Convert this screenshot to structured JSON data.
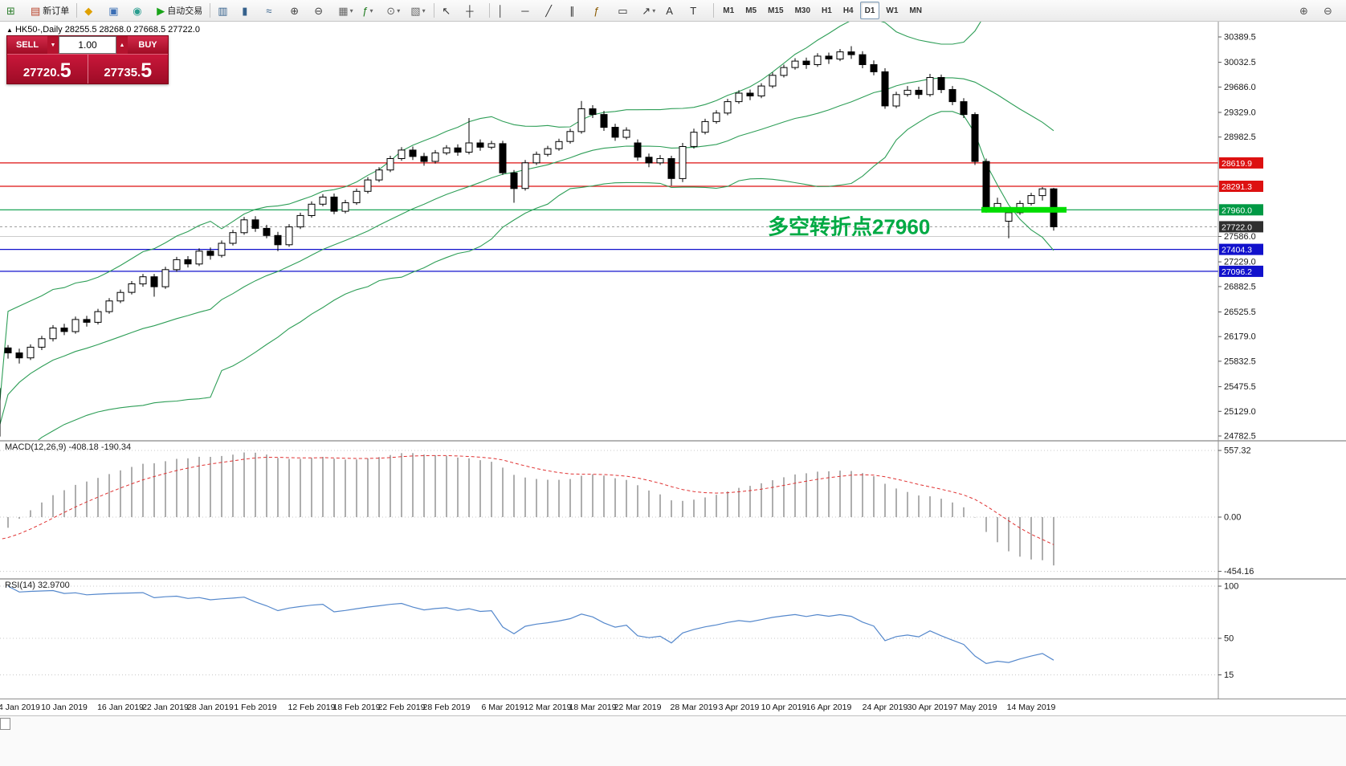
{
  "toolbar": {
    "groups": [
      {
        "items": [
          {
            "name": "new-chart-button",
            "icon": "chart-plus-icon",
            "glyph": "⊞",
            "color": "#2a7d2a"
          },
          {
            "name": "new-order-button",
            "icon": "order-form-icon",
            "glyph": "▤",
            "color": "#b8422a",
            "label": "新订单"
          }
        ]
      },
      {
        "items": [
          {
            "name": "mql5-market-button",
            "icon": "diamond-icon",
            "glyph": "◆",
            "color": "#dfa000"
          },
          {
            "name": "community-button",
            "icon": "person-icon",
            "glyph": "▣",
            "color": "#3b6fb5"
          },
          {
            "name": "news-button",
            "icon": "globe-icon",
            "glyph": "◉",
            "color": "#2a9d8f"
          },
          {
            "name": "autotrading-button",
            "icon": "play-icon",
            "glyph": "▶",
            "color": "#18a318",
            "label": "自动交易"
          }
        ]
      },
      {
        "items": [
          {
            "name": "bar-chart-button",
            "icon": "bars-chart-icon",
            "glyph": "▥",
            "color": "#35618c"
          },
          {
            "name": "candlestick-chart-button",
            "icon": "candlestick-icon",
            "glyph": "▮",
            "color": "#35618c"
          },
          {
            "name": "line-chart-button",
            "icon": "line-chart-icon",
            "glyph": "≈",
            "color": "#35618c"
          },
          {
            "name": "zoom-in-button",
            "icon": "zoom-in-icon",
            "glyph": "⊕",
            "color": "#444444"
          },
          {
            "name": "zoom-out-button",
            "icon": "zoom-out-icon",
            "glyph": "⊖",
            "color": "#444444"
          },
          {
            "name": "tile-windows-button",
            "icon": "tile-windows-icon",
            "glyph": "▦",
            "color": "#666666",
            "caret": true
          },
          {
            "name": "indicators-button",
            "icon": "indicators-icon",
            "glyph": "ƒ",
            "color": "#1d7a1d",
            "caret": true
          },
          {
            "name": "periods-button",
            "icon": "clock-icon",
            "glyph": "⊙",
            "color": "#666666",
            "caret": true
          },
          {
            "name": "templates-button",
            "icon": "template-icon",
            "glyph": "▧",
            "color": "#666666",
            "caret": true
          }
        ]
      },
      {
        "items": [
          {
            "name": "cursor-button",
            "icon": "cursor-icon",
            "glyph": "↖",
            "color": "#333333"
          },
          {
            "name": "crosshair-button",
            "icon": "crosshair-icon",
            "glyph": "┼",
            "color": "#333333"
          }
        ]
      },
      {
        "items": [
          {
            "name": "vertical-line-button",
            "icon": "vertical-line-icon",
            "glyph": "│",
            "color": "#333333"
          },
          {
            "name": "horizontal-line-button",
            "icon": "horizontal-line-icon",
            "glyph": "─",
            "color": "#333333"
          },
          {
            "name": "trendline-button",
            "icon": "trendline-icon",
            "glyph": "╱",
            "color": "#333333"
          },
          {
            "name": "channel-button",
            "icon": "channel-icon",
            "glyph": "∥",
            "color": "#333333"
          },
          {
            "name": "fibonacci-button",
            "icon": "fibonacci-icon",
            "glyph": "ƒ",
            "color": "#8a5a00"
          },
          {
            "name": "shapes-button",
            "icon": "shapes-icon",
            "glyph": "▭",
            "color": "#333333"
          },
          {
            "name": "arrows-button",
            "icon": "arrow-icon",
            "glyph": "↗",
            "color": "#333333",
            "caret": true
          },
          {
            "name": "text-button",
            "icon": "text-icon",
            "glyph": "A",
            "color": "#333333"
          },
          {
            "name": "text-label-button",
            "icon": "text-label-icon",
            "glyph": "T",
            "color": "#333333"
          }
        ]
      }
    ],
    "timeframes": [
      "M1",
      "M5",
      "M15",
      "M30",
      "H1",
      "H4",
      "D1",
      "W1",
      "MN"
    ],
    "active_timeframe": "D1",
    "right_items": [
      {
        "name": "window-zoom-in-button",
        "icon": "magnifier-plus-icon",
        "glyph": "⊕",
        "color": "#555555"
      },
      {
        "name": "window-zoom-out-button",
        "icon": "magnifier-minus-icon",
        "glyph": "⊖",
        "color": "#555555"
      }
    ]
  },
  "chart": {
    "symbol_info": "HK50-,Daily  28255.5 28268.0 27668.5 27722.0",
    "collapse_arrow": "▲"
  },
  "trade": {
    "sell_label": "SELL",
    "buy_label": "BUY",
    "volume": "1.00",
    "spin_down": "▼",
    "spin_up": "▲",
    "sell_price_main": "27720.",
    "sell_price_frac": "5",
    "buy_price_main": "27735.",
    "buy_price_frac": "5"
  },
  "chart_data": {
    "type": "candlestick",
    "symbol": "HK50-",
    "period": "Daily",
    "last_ohlc": {
      "open": 28255.5,
      "high": 28268.0,
      "low": 27668.5,
      "close": 27722.0
    },
    "price_range": {
      "top": 30389.5,
      "bottom": 24782.5
    },
    "y_axis_ticks": [
      30389.5,
      30032.5,
      29686.0,
      29329.0,
      28982.5,
      27586.0,
      27229.0,
      26882.5,
      26525.5,
      26179.0,
      25832.5,
      25475.5,
      25129.0,
      24782.5
    ],
    "levels": [
      {
        "price": 28619.9,
        "color": "#dd1111",
        "width": 1.2,
        "badge": true
      },
      {
        "price": 28291.3,
        "color": "#dd1111",
        "width": 1.2,
        "badge": true
      },
      {
        "price": 27960.0,
        "color": "#009944",
        "width": 1.2,
        "badge": true
      },
      {
        "price": 27586.0,
        "color": "#cccccc",
        "width": 1,
        "badge": false
      },
      {
        "price": 27404.3,
        "color": "#1111cc",
        "width": 1.2,
        "badge": true
      },
      {
        "price": 27096.2,
        "color": "#1111cc",
        "width": 1.2,
        "badge": true
      }
    ],
    "current_price": {
      "price": 27722.0,
      "badge_color": "#2f2f2f"
    },
    "bollinger": {
      "period": 20,
      "deviation": 2,
      "color": "#2e9e57"
    },
    "trend_highlight": {
      "price": 27960.0,
      "from_candle": 88,
      "to_candle": 94,
      "color": "#00dd00"
    },
    "annotation": {
      "text": "多空转折点27960",
      "color": "#00aa44"
    },
    "macd": {
      "label": "MACD(12,26,9)",
      "value_main": "-408.18",
      "value_signal": "-190.34",
      "axis": [
        "557.32",
        "0.00",
        "-454.16"
      ],
      "axis_values": [
        557.32,
        0,
        -454.16
      ]
    },
    "rsi": {
      "label": "RSI(14)",
      "value": "32.9700",
      "axis": [
        "100",
        "50",
        "15"
      ],
      "axis_values": [
        100,
        50,
        15
      ]
    },
    "date_labels": [
      {
        "label": "4 Jan 2019",
        "i": 1
      },
      {
        "label": "10 Jan 2019",
        "i": 6
      },
      {
        "label": "16 Jan 2019",
        "i": 11
      },
      {
        "label": "22 Jan 2019",
        "i": 15
      },
      {
        "label": "28 Jan 2019",
        "i": 19
      },
      {
        "label": "1 Feb 2019",
        "i": 23
      },
      {
        "label": "12 Feb 2019",
        "i": 28
      },
      {
        "label": "18 Feb 2019",
        "i": 32
      },
      {
        "label": "22 Feb 2019",
        "i": 36
      },
      {
        "label": "28 Feb 2019",
        "i": 40
      },
      {
        "label": "6 Mar 2019",
        "i": 45
      },
      {
        "label": "12 Mar 2019",
        "i": 49
      },
      {
        "label": "18 Mar 2019",
        "i": 53
      },
      {
        "label": "22 Mar 2019",
        "i": 57
      },
      {
        "label": "28 Mar 2019",
        "i": 62
      },
      {
        "label": "3 Apr 2019",
        "i": 66
      },
      {
        "label": "10 Apr 2019",
        "i": 70
      },
      {
        "label": "16 Apr 2019",
        "i": 74
      },
      {
        "label": "24 Apr 2019",
        "i": 79
      },
      {
        "label": "30 Apr 2019",
        "i": 83
      },
      {
        "label": "7 May 2019",
        "i": 87
      },
      {
        "label": "14 May 2019",
        "i": 92
      }
    ],
    "candles": [
      [
        25450,
        25500,
        24700,
        24780
      ],
      [
        26020,
        26060,
        25870,
        25950
      ],
      [
        25950,
        26010,
        25800,
        25880
      ],
      [
        25880,
        26070,
        25850,
        26030
      ],
      [
        26030,
        26190,
        25990,
        26150
      ],
      [
        26150,
        26340,
        26110,
        26300
      ],
      [
        26300,
        26360,
        26200,
        26250
      ],
      [
        26250,
        26460,
        26220,
        26420
      ],
      [
        26420,
        26470,
        26320,
        26380
      ],
      [
        26380,
        26570,
        26350,
        26530
      ],
      [
        26530,
        26720,
        26500,
        26680
      ],
      [
        26680,
        26840,
        26650,
        26800
      ],
      [
        26800,
        26960,
        26770,
        26920
      ],
      [
        26920,
        27060,
        26880,
        27020
      ],
      [
        27020,
        27060,
        26740,
        26880
      ],
      [
        26880,
        27160,
        26850,
        27120
      ],
      [
        27120,
        27300,
        27090,
        27260
      ],
      [
        27260,
        27310,
        27150,
        27200
      ],
      [
        27200,
        27420,
        27170,
        27380
      ],
      [
        27380,
        27430,
        27260,
        27320
      ],
      [
        27320,
        27530,
        27290,
        27490
      ],
      [
        27490,
        27680,
        27460,
        27640
      ],
      [
        27640,
        27860,
        27610,
        27820
      ],
      [
        27820,
        27870,
        27650,
        27700
      ],
      [
        27700,
        27750,
        27560,
        27600
      ],
      [
        27600,
        27650,
        27380,
        27470
      ],
      [
        27470,
        27760,
        27440,
        27720
      ],
      [
        27720,
        27920,
        27690,
        27880
      ],
      [
        27880,
        28080,
        27850,
        28040
      ],
      [
        28040,
        28180,
        28010,
        28140
      ],
      [
        28140,
        28190,
        27900,
        27940
      ],
      [
        27940,
        28100,
        27910,
        28060
      ],
      [
        28060,
        28260,
        28030,
        28220
      ],
      [
        28220,
        28420,
        28190,
        28380
      ],
      [
        28380,
        28560,
        28350,
        28520
      ],
      [
        28520,
        28720,
        28490,
        28680
      ],
      [
        28680,
        28840,
        28650,
        28800
      ],
      [
        28800,
        28850,
        28660,
        28710
      ],
      [
        28710,
        28760,
        28580,
        28640
      ],
      [
        28640,
        28800,
        28610,
        28760
      ],
      [
        28760,
        28870,
        28730,
        28830
      ],
      [
        28830,
        28880,
        28720,
        28770
      ],
      [
        28770,
        29250,
        28740,
        28900
      ],
      [
        28900,
        28950,
        28790,
        28840
      ],
      [
        28840,
        28930,
        28810,
        28890
      ],
      [
        28890,
        28930,
        28450,
        28480
      ],
      [
        28480,
        28520,
        28060,
        28260
      ],
      [
        28260,
        28660,
        28230,
        28620
      ],
      [
        28620,
        28780,
        28590,
        28740
      ],
      [
        28740,
        28860,
        28710,
        28820
      ],
      [
        28820,
        28960,
        28790,
        28920
      ],
      [
        28920,
        29100,
        28890,
        29060
      ],
      [
        29060,
        29490,
        29030,
        29380
      ],
      [
        29380,
        29430,
        29250,
        29300
      ],
      [
        29300,
        29350,
        29070,
        29120
      ],
      [
        29120,
        29170,
        28930,
        28980
      ],
      [
        28980,
        29120,
        28950,
        29080
      ],
      [
        28900,
        28950,
        28650,
        28700
      ],
      [
        28700,
        28750,
        28560,
        28620
      ],
      [
        28620,
        28730,
        28590,
        28680
      ],
      [
        28680,
        28720,
        28300,
        28400
      ],
      [
        28400,
        28900,
        28350,
        28850
      ],
      [
        28850,
        29100,
        28820,
        29050
      ],
      [
        29050,
        29240,
        29020,
        29200
      ],
      [
        29200,
        29360,
        29170,
        29320
      ],
      [
        29320,
        29520,
        29290,
        29480
      ],
      [
        29480,
        29640,
        29450,
        29600
      ],
      [
        29600,
        29650,
        29500,
        29560
      ],
      [
        29560,
        29740,
        29530,
        29700
      ],
      [
        29700,
        29890,
        29670,
        29850
      ],
      [
        29850,
        30000,
        29820,
        29960
      ],
      [
        29960,
        30090,
        29930,
        30050
      ],
      [
        30050,
        30100,
        29940,
        30000
      ],
      [
        30000,
        30160,
        29970,
        30120
      ],
      [
        30120,
        30170,
        30010,
        30080
      ],
      [
        30080,
        30220,
        30050,
        30180
      ],
      [
        30180,
        30260,
        30080,
        30140
      ],
      [
        30140,
        30190,
        29950,
        30000
      ],
      [
        30000,
        30060,
        29850,
        29900
      ],
      [
        29900,
        29950,
        29380,
        29420
      ],
      [
        29420,
        29620,
        29390,
        29580
      ],
      [
        29580,
        29700,
        29550,
        29640
      ],
      [
        29640,
        29690,
        29520,
        29580
      ],
      [
        29580,
        29870,
        29550,
        29820
      ],
      [
        29820,
        29860,
        29600,
        29650
      ],
      [
        29650,
        29700,
        29430,
        29480
      ],
      [
        29480,
        29530,
        29250,
        29300
      ],
      [
        29300,
        29330,
        28590,
        28640
      ],
      [
        28640,
        28680,
        27920,
        27960
      ],
      [
        27960,
        28130,
        27930,
        28050
      ],
      [
        27800,
        27960,
        27560,
        27920
      ],
      [
        27920,
        28090,
        27890,
        28050
      ],
      [
        28050,
        28200,
        28020,
        28160
      ],
      [
        28160,
        28280,
        28090,
        28255
      ],
      [
        28255.5,
        28268.0,
        27668.5,
        27722.0
      ]
    ]
  }
}
